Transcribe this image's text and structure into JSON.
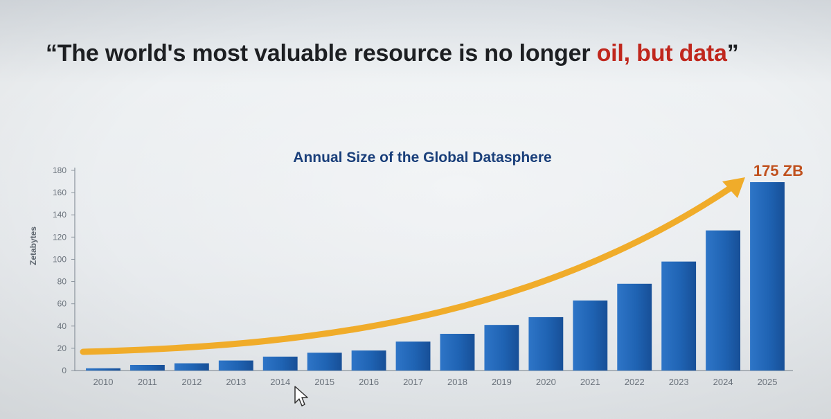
{
  "slide": {
    "quote_open": "“The world's most valuable resource is no longer ",
    "quote_red": "oil, but data",
    "quote_close": "”"
  },
  "chart_data": {
    "type": "bar",
    "title": "Annual Size of the Global Datasphere",
    "ylabel": "Zetabytes",
    "xlabel": "",
    "ylim": [
      0,
      180
    ],
    "yticks": [
      0,
      20,
      40,
      60,
      80,
      100,
      120,
      140,
      160,
      180
    ],
    "categories": [
      "2010",
      "2011",
      "2012",
      "2013",
      "2014",
      "2015",
      "2016",
      "2017",
      "2018",
      "2019",
      "2020",
      "2021",
      "2022",
      "2023",
      "2024",
      "2025"
    ],
    "values": [
      2,
      5,
      6.5,
      9,
      12.5,
      16,
      18,
      26,
      33,
      41,
      48,
      63,
      78,
      98,
      126,
      175
    ],
    "annotation": "175 ZB",
    "colors": {
      "bar": "#1f63b3",
      "bar_highlight": "#4a8fd8",
      "arrow": "#f0ac2a",
      "annotation": "#c0501d",
      "title": "#1a3f7a",
      "axis": "#7d8690"
    }
  }
}
